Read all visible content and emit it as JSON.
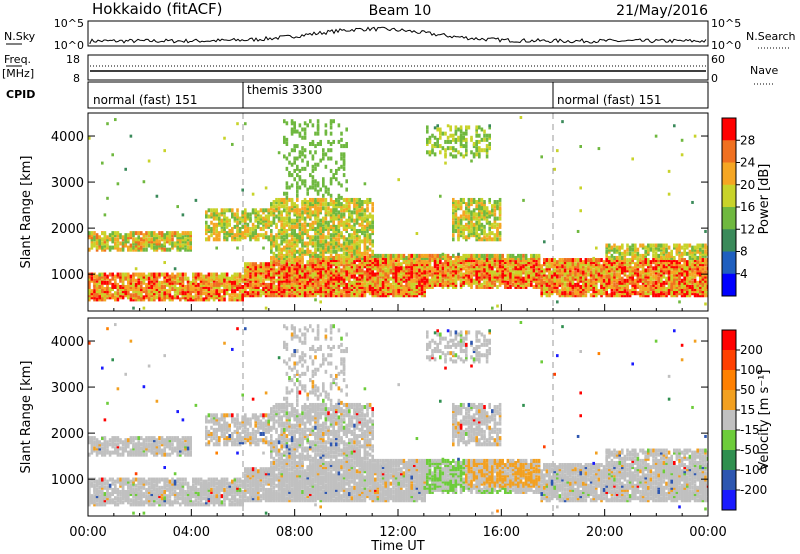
{
  "header": {
    "radar": "Hokkaido (fitACF)",
    "beam": "Beam 10",
    "date": "21/May/2016"
  },
  "panels": {
    "nsky": {
      "left_label": "N.Sky",
      "left_ticks": [
        "10^5",
        "10^0"
      ],
      "right_ticks": [
        "10^5",
        "10^0"
      ],
      "right_label": "N.Search"
    },
    "freq": {
      "left_label_1": "Freq.",
      "left_label_2": "[MHz]",
      "left_ticks": [
        "18",
        "8"
      ],
      "right_ticks": [
        "60",
        "0"
      ],
      "right_label": "Nave"
    },
    "cpid": {
      "left_label": "CPID",
      "segments": [
        {
          "label": "normal (fast) 151",
          "start_h": 0
        },
        {
          "label": "themis 3300",
          "start_h": 6
        },
        {
          "label": "normal (fast) 151",
          "start_h": 18
        }
      ]
    }
  },
  "chart_data": [
    {
      "type": "heatmap",
      "name": "power",
      "ylabel": "Slant Range [km]",
      "ylim": [
        200,
        4500
      ],
      "yticks": [
        1000,
        2000,
        3000,
        4000
      ],
      "xlim": [
        0,
        24
      ],
      "colorbar": {
        "label": "Power [dB]",
        "ticks": [
          "4",
          "8",
          "12",
          "16",
          "20",
          "24",
          "28"
        ],
        "colors": [
          "#0000ff",
          "#1f5fbf",
          "#3a8a5a",
          "#6fb83f",
          "#c8d32a",
          "#f5a623",
          "#f07020",
          "#ff0000"
        ]
      }
    },
    {
      "type": "heatmap",
      "name": "velocity",
      "ylabel": "Slant Range [km]",
      "ylim": [
        200,
        4500
      ],
      "yticks": [
        1000,
        2000,
        3000,
        4000
      ],
      "xlim": [
        0,
        24
      ],
      "xlabel": "Time UT",
      "xticks": [
        "00:00",
        "04:00",
        "08:00",
        "12:00",
        "16:00",
        "20:00",
        "00:00"
      ],
      "colorbar": {
        "label": "Velocity [m s⁻¹]",
        "ticks": [
          "200",
          "100",
          "50",
          "15",
          "-15",
          "-50",
          "-100",
          "-200"
        ],
        "colors": [
          "#1a1aff",
          "#2d56b0",
          "#2f8f4f",
          "#6dcc3a",
          "#c0c0c0",
          "#f2a020",
          "#ff8000",
          "#ff4000",
          "#ff0000"
        ]
      }
    }
  ],
  "colors": {
    "ground_scatter": "#c0c0c0",
    "axis": "#000000",
    "cpid_divider": "#999999"
  }
}
